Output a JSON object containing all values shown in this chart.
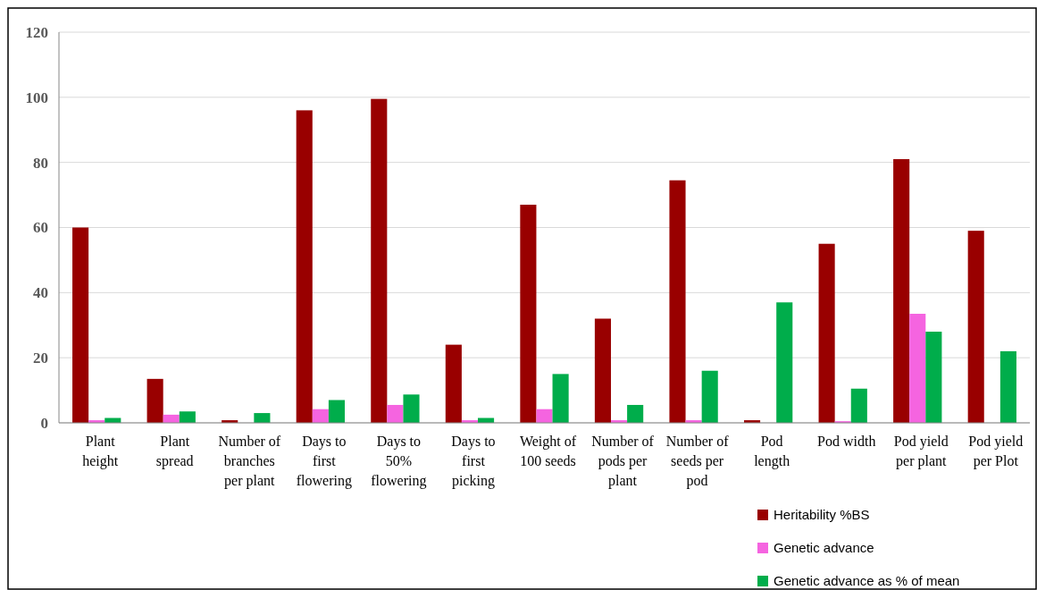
{
  "chart_data": {
    "type": "bar",
    "categories": [
      "Plant height",
      "Plant spread",
      "Number of branches per plant",
      "Days to first flowering",
      "Days to 50% flowering",
      "Days to first picking",
      "Weight of 100 seeds",
      "Number of pods per plant",
      "Number of seeds per pod",
      "Pod length",
      "Pod width",
      "Pod yield per plant",
      "Pod yield per Plot"
    ],
    "series": [
      {
        "name": "Heritability %BS",
        "color": "#990000",
        "values": [
          60,
          13.5,
          0.8,
          96,
          99.5,
          24,
          67,
          32,
          74.5,
          0.8,
          55,
          81,
          59
        ]
      },
      {
        "name": "Genetic advance",
        "color": "#f564e0",
        "values": [
          0.8,
          2.5,
          0,
          4.2,
          5.5,
          0.8,
          4.2,
          0.8,
          0.8,
          0,
          0.5,
          33.5,
          0
        ]
      },
      {
        "name": "Genetic advance as % of mean",
        "color": "#00ad4b",
        "values": [
          1.5,
          3.5,
          3,
          7,
          8.7,
          1.5,
          15,
          5.5,
          16,
          37,
          10.5,
          28,
          22
        ]
      }
    ],
    "ylim": [
      0,
      120
    ],
    "yticks": [
      0,
      20,
      40,
      60,
      80,
      100,
      120
    ],
    "grid": "y",
    "legend": "bottom right"
  }
}
